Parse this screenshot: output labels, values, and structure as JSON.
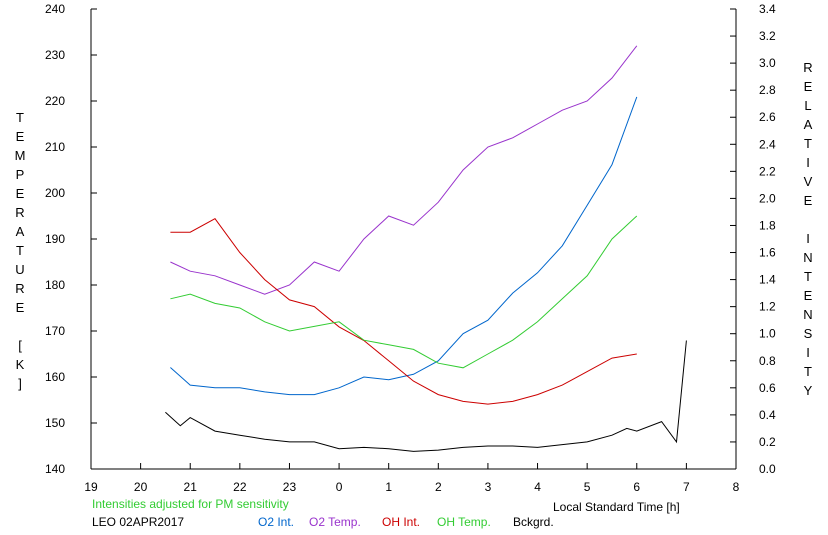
{
  "chart_data": {
    "type": "line",
    "xlabel": "Local Standard Time [h]",
    "ylabel_left": "TEMPERATURE [K]",
    "ylabel_right": "RELATIVE INTENSITY",
    "left_axis": {
      "range": [
        140,
        240
      ],
      "ticks": [
        140,
        150,
        160,
        170,
        180,
        190,
        200,
        210,
        220,
        230,
        240
      ]
    },
    "right_axis": {
      "range": [
        0,
        3.4
      ],
      "ticks": [
        "0.0",
        "0.2",
        "0.4",
        "0.6",
        "0.8",
        "1.0",
        "1.2",
        "1.4",
        "1.6",
        "1.8",
        "2.0",
        "2.2",
        "2.4",
        "2.6",
        "2.8",
        "3.0",
        "3.2",
        "3.4"
      ]
    },
    "x_axis": {
      "ticks": [
        "19",
        "20",
        "21",
        "22",
        "23",
        "0",
        "1",
        "2",
        "3",
        "4",
        "5",
        "6",
        "7",
        "8"
      ]
    },
    "grid": false,
    "series": [
      {
        "name": "O2 Int.",
        "axis": "right",
        "color": "#0066cc",
        "x": [
          20.6,
          21.0,
          21.5,
          22.0,
          22.5,
          23.0,
          23.5,
          24.0,
          24.5,
          25.0,
          25.5,
          26.0,
          26.5,
          27.0,
          27.5,
          28.0,
          28.5,
          29.0,
          29.5,
          30.0
        ],
        "y": [
          0.75,
          0.62,
          0.6,
          0.6,
          0.57,
          0.55,
          0.55,
          0.6,
          0.68,
          0.66,
          0.7,
          0.8,
          1.0,
          1.1,
          1.3,
          1.45,
          1.65,
          1.95,
          2.25,
          2.75
        ]
      },
      {
        "name": "O2 Temp.",
        "axis": "left",
        "color": "#9933cc",
        "x": [
          20.6,
          21.0,
          21.5,
          22.0,
          22.5,
          23.0,
          23.5,
          24.0,
          24.5,
          25.0,
          25.5,
          26.0,
          26.5,
          27.0,
          27.5,
          28.0,
          28.5,
          29.0,
          29.5,
          30.0
        ],
        "y": [
          185,
          183,
          182,
          180,
          178,
          180,
          185,
          183,
          190,
          195,
          193,
          198,
          205,
          210,
          212,
          215,
          218,
          220,
          225,
          232
        ]
      },
      {
        "name": "OH Int.",
        "axis": "right",
        "color": "#cc0000",
        "x": [
          20.6,
          21.0,
          21.5,
          22.0,
          22.5,
          23.0,
          23.5,
          24.0,
          24.5,
          25.0,
          25.5,
          26.0,
          26.5,
          27.0,
          27.5,
          28.0,
          28.5,
          29.0,
          29.5,
          30.0
        ],
        "y": [
          1.75,
          1.75,
          1.85,
          1.6,
          1.4,
          1.25,
          1.2,
          1.05,
          0.95,
          0.8,
          0.65,
          0.55,
          0.5,
          0.48,
          0.5,
          0.55,
          0.62,
          0.72,
          0.82,
          0.85
        ]
      },
      {
        "name": "OH Temp.",
        "axis": "left",
        "color": "#33cc33",
        "x": [
          20.6,
          21.0,
          21.5,
          22.0,
          22.5,
          23.0,
          23.5,
          24.0,
          24.5,
          25.0,
          25.5,
          26.0,
          26.5,
          27.0,
          27.5,
          28.0,
          28.5,
          29.0,
          29.5,
          30.0
        ],
        "y": [
          177,
          178,
          176,
          175,
          172,
          170,
          171,
          172,
          168,
          167,
          166,
          163,
          162,
          165,
          168,
          172,
          177,
          182,
          190,
          195
        ]
      },
      {
        "name": "Bckgrd.",
        "axis": "right",
        "color": "#000000",
        "x": [
          20.5,
          20.8,
          21.0,
          21.5,
          22.0,
          22.5,
          23.0,
          23.5,
          24.0,
          24.5,
          25.0,
          25.5,
          26.0,
          26.5,
          27.0,
          27.5,
          28.0,
          28.5,
          29.0,
          29.5,
          29.8,
          30.0,
          30.5,
          30.8,
          31.0
        ],
        "y": [
          0.42,
          0.32,
          0.38,
          0.28,
          0.25,
          0.22,
          0.2,
          0.2,
          0.15,
          0.16,
          0.15,
          0.13,
          0.14,
          0.16,
          0.17,
          0.17,
          0.16,
          0.18,
          0.2,
          0.25,
          0.3,
          0.28,
          0.35,
          0.2,
          0.95
        ]
      }
    ]
  },
  "footer": {
    "note": "Intensities adjusted for PM sensitivity",
    "note_color": "#33cc33",
    "station": "LEO 02APR2017"
  }
}
